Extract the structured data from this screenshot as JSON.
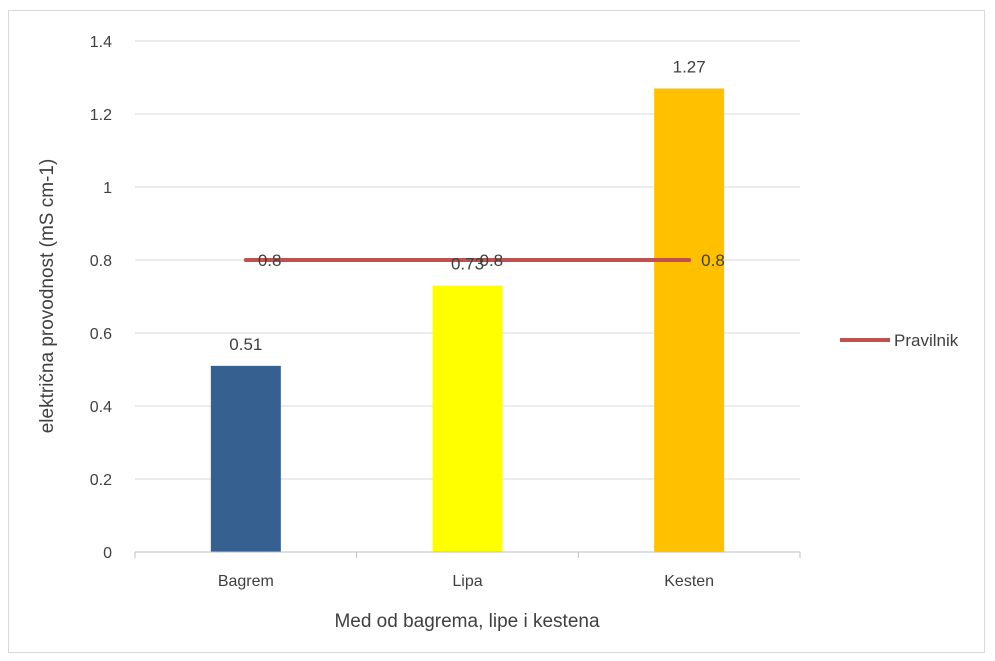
{
  "chart_data": {
    "type": "bar",
    "categories": [
      "Bagrem",
      "Lipa",
      "Kesten"
    ],
    "values": [
      0.51,
      0.73,
      1.27
    ],
    "value_labels": [
      "0.51",
      "0.73",
      "1.27"
    ],
    "bar_colors": [
      "#35608f",
      "#ffff00",
      "#ffc000"
    ],
    "line_series": {
      "name": "Pravilnik",
      "values": [
        0.8,
        0.8,
        0.8
      ],
      "labels": [
        "0.8",
        "0.8",
        "0.8"
      ],
      "color": "#c0504d"
    },
    "title": "",
    "xlabel": "Med od bagrema, lipe i kestena",
    "ylabel": "električna provodnost (mS cm-1)",
    "ylim": [
      0,
      1.4
    ],
    "yticks": [
      0,
      0.2,
      0.4,
      0.6,
      0.8,
      1,
      1.2,
      1.4
    ],
    "ytick_labels": [
      "0",
      "0.2",
      "0.4",
      "0.6",
      "0.8",
      "1",
      "1.2",
      "1.4"
    ],
    "grid": true,
    "legend_position": "right"
  }
}
